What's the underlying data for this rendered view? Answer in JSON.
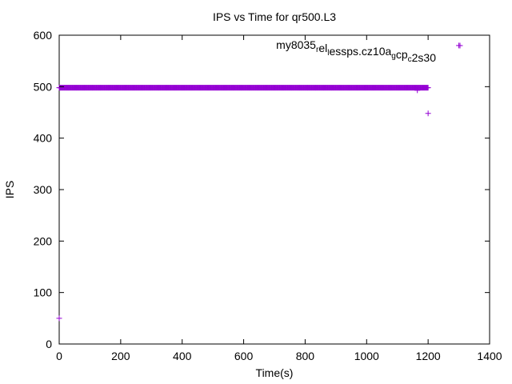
{
  "chart_data": {
    "type": "scatter",
    "title": "IPS vs Time for qr500.L3",
    "xlabel": "Time(s)",
    "ylabel": "IPS",
    "xlim": [
      0,
      1400
    ],
    "ylim": [
      0,
      600
    ],
    "xticks": [
      0,
      200,
      400,
      600,
      800,
      1000,
      1200,
      1400
    ],
    "yticks": [
      0,
      100,
      200,
      300,
      400,
      500,
      600
    ],
    "legend_position": "top-right",
    "grid": false,
    "marker": "plus",
    "series": [
      {
        "name": "my8035_rel_lessps.cz10a_gcp_c2s30",
        "color": "#9400d3",
        "dense_range": {
          "x_start": 0,
          "x_end": 1200,
          "step": 2,
          "y": 498
        },
        "points": [
          {
            "x": 0,
            "y": 50
          },
          {
            "x": 1165,
            "y": 493
          },
          {
            "x": 1200,
            "y": 448
          },
          {
            "x": 1300,
            "y": 580
          }
        ]
      }
    ]
  }
}
